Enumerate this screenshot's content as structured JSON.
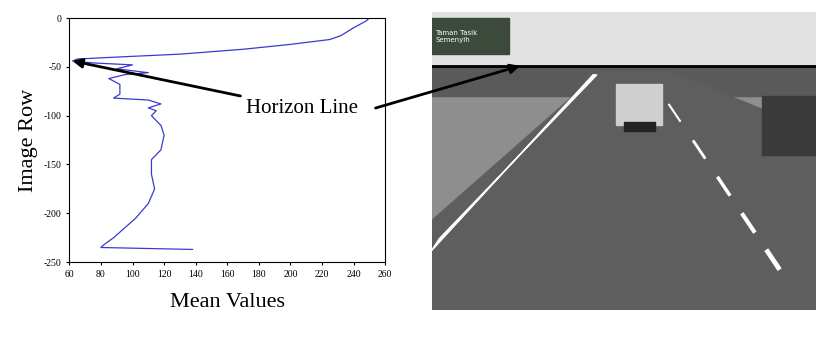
{
  "chart_data": {
    "type": "line",
    "xlabel": "Mean Values",
    "ylabel": "Image Row",
    "x": [
      250,
      248,
      240,
      232,
      225,
      200,
      170,
      130,
      90,
      65,
      62,
      75,
      100,
      90,
      110,
      95,
      85,
      92,
      92,
      88,
      110,
      118,
      110,
      115,
      112,
      118,
      120,
      118,
      112,
      112,
      114,
      110,
      102,
      95,
      88,
      82,
      80,
      138
    ],
    "values": [
      0,
      -3,
      -10,
      -18,
      -22,
      -27,
      -32,
      -37,
      -40,
      -42,
      -44,
      -46,
      -48,
      -52,
      -56,
      -58,
      -62,
      -68,
      -78,
      -82,
      -84,
      -88,
      -92,
      -95,
      -100,
      -110,
      -120,
      -135,
      -145,
      -160,
      -175,
      -190,
      -205,
      -215,
      -225,
      -232,
      -235,
      -237
    ],
    "color": "#3a3ad0",
    "xlim": [
      60,
      260
    ],
    "xticks": [
      60,
      80,
      100,
      120,
      140,
      160,
      180,
      200,
      220,
      240,
      260
    ],
    "ylim": [
      -250,
      0
    ],
    "yticks": [
      -250,
      -200,
      -150,
      -100,
      -50,
      0
    ],
    "grid": false,
    "annotation": "Horizon Line"
  },
  "photo": {
    "sign_text": [
      "Taman Tasik",
      "Semenyih"
    ]
  }
}
